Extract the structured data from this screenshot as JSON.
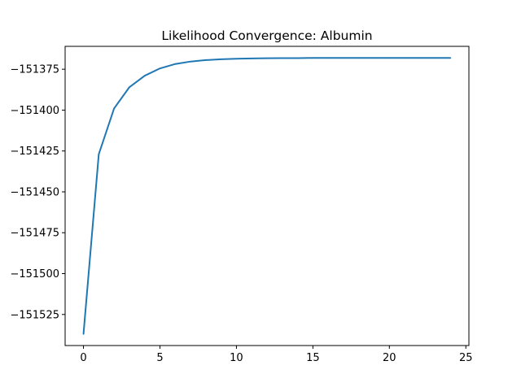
{
  "chart_data": {
    "type": "line",
    "title": "Likelihood Convergence: Albumin",
    "xlabel": "",
    "ylabel": "",
    "xlim": [
      -1.2,
      25.2
    ],
    "ylim": [
      -151544,
      -151361
    ],
    "grid": false,
    "legend": "none",
    "x_ticks": [
      0,
      5,
      10,
      15,
      20,
      25
    ],
    "y_ticks": [
      -151525,
      -151500,
      -151475,
      -151450,
      -151425,
      -151400,
      -151375
    ],
    "series": [
      {
        "color": "#1f77b4",
        "x": [
          0,
          1,
          2,
          3,
          4,
          5,
          6,
          7,
          8,
          9,
          10,
          11,
          12,
          13,
          14,
          15,
          16,
          17,
          18,
          19,
          20,
          21,
          22,
          23,
          24
        ],
        "y": [
          -151537,
          -151427,
          -151399,
          -151386,
          -151379,
          -151374.5,
          -151371.8,
          -151370.3,
          -151369.4,
          -151368.9,
          -151368.6,
          -151368.4,
          -151368.3,
          -151368.2,
          -151368.2,
          -151368.1,
          -151368.1,
          -151368.1,
          -151368.1,
          -151368.1,
          -151368.1,
          -151368.1,
          -151368.1,
          -151368.1,
          -151368.1
        ]
      }
    ]
  }
}
